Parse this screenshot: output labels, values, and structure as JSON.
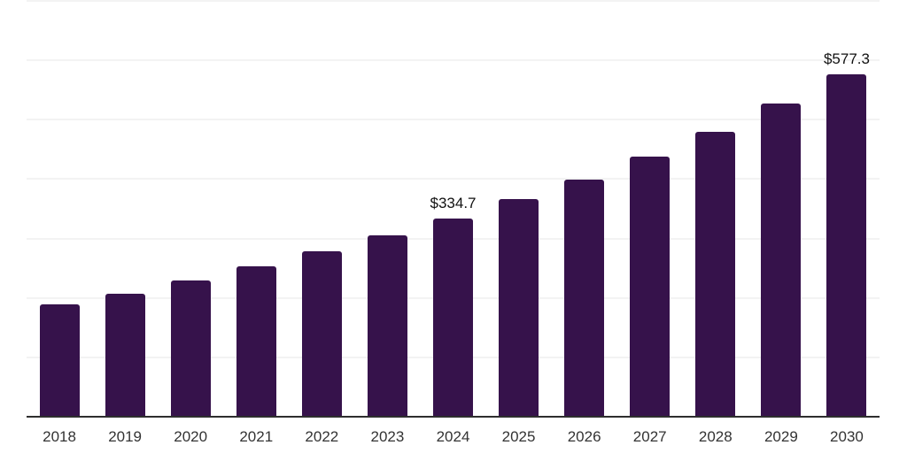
{
  "chart_data": {
    "type": "bar",
    "categories": [
      "2018",
      "2019",
      "2020",
      "2021",
      "2022",
      "2023",
      "2024",
      "2025",
      "2026",
      "2027",
      "2028",
      "2029",
      "2030"
    ],
    "values": [
      190.2,
      208.9,
      231.2,
      254.0,
      279.7,
      306.4,
      334.7,
      368.2,
      400.3,
      439.5,
      480.4,
      528.5,
      577.3
    ],
    "labeled_points": [
      {
        "index": 6,
        "category": "2024",
        "label": "$334.7"
      },
      {
        "index": 12,
        "category": "2030",
        "label": "$577.3"
      }
    ],
    "value_prefix": "$",
    "ylim": [
      0,
      700
    ],
    "gridline_interval": 100,
    "grid": true,
    "legend": false,
    "y_tick_labels_shown": false,
    "colors": {
      "bar": "#36124B",
      "gridline": "#f3f3f3",
      "axis_line": "#2e2e2e",
      "value_label": "#111111",
      "tick_label": "#333333",
      "background": "#ffffff"
    }
  }
}
